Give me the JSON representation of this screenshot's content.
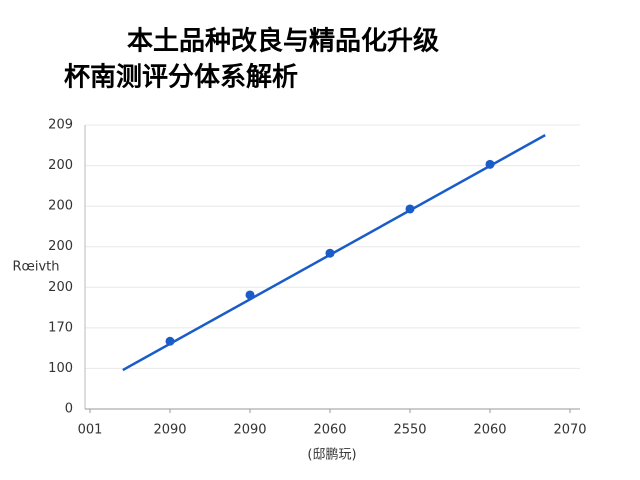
{
  "chart_data": {
    "type": "line",
    "title": [
      "本土品种改良与精品化升级",
      "杯南测评分体系解析"
    ],
    "x_label": "(邸鹏玩)",
    "y_label": "Rœivth",
    "xlim": [
      0,
      6
    ],
    "ylim": [
      0,
      7
    ],
    "xticks": [
      {
        "value": 0,
        "label": "001"
      },
      {
        "value": 1,
        "label": "2090"
      },
      {
        "value": 2,
        "label": "2090"
      },
      {
        "value": 3,
        "label": "2060"
      },
      {
        "value": 4,
        "label": "2550"
      },
      {
        "value": 5,
        "label": "2060"
      },
      {
        "value": 6,
        "label": "2070"
      }
    ],
    "yticks": [
      {
        "value": 0,
        "label": "0"
      },
      {
        "value": 1,
        "label": "100"
      },
      {
        "value": 2,
        "label": "170"
      },
      {
        "value": 3,
        "label": "200"
      },
      {
        "value": 4,
        "label": "200"
      },
      {
        "value": 5,
        "label": "200"
      },
      {
        "value": 6,
        "label": "200"
      },
      {
        "value": 7,
        "label": "209"
      }
    ],
    "grid": true,
    "series": [
      {
        "color": "#1a5cc8",
        "style": "line",
        "x": [
          0.41,
          5.69
        ],
        "values": [
          0.96,
          6.75
        ]
      },
      {
        "color": "#1a5cc8",
        "style": "markers",
        "x": [
          1,
          2,
          3,
          4,
          5
        ],
        "values": [
          1.67,
          2.81,
          3.84,
          4.93,
          6.03
        ]
      }
    ]
  }
}
